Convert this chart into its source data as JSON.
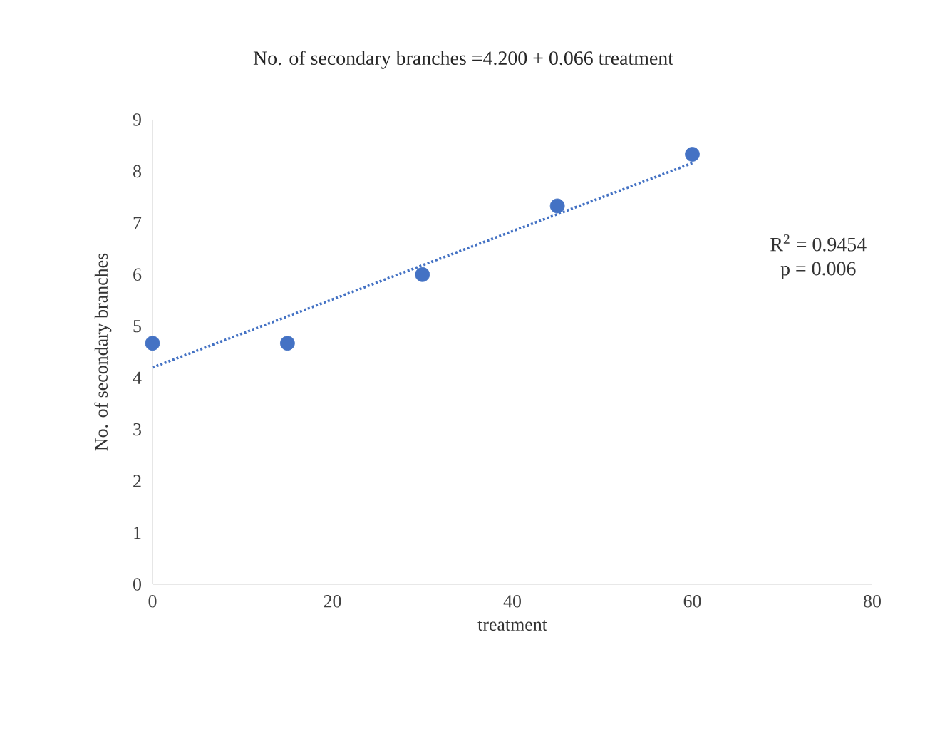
{
  "chart_data": {
    "type": "scatter",
    "title": "No. of secondary branches =4.200 + 0.066 treatment",
    "xlabel": "treatment",
    "ylabel": "No. of secondary branches",
    "xlim": [
      0,
      80
    ],
    "xticks": [
      0,
      20,
      40,
      60,
      80
    ],
    "ylim": [
      0,
      9
    ],
    "yticks": [
      0,
      1,
      2,
      3,
      4,
      5,
      6,
      7,
      8,
      9
    ],
    "annotations": [
      "R$^{2}$ = 0.9454",
      "p = 0.006"
    ],
    "series": [
      {
        "color": "#4472c4",
        "marker": "circle",
        "x": [
          0,
          15,
          30,
          45,
          60
        ],
        "values": [
          4.67,
          4.67,
          6.0,
          7.33,
          8.33
        ]
      },
      {
        "type": "line",
        "color": "#4472c4",
        "line_style": "dotted",
        "marker": "none",
        "x": [
          0,
          60
        ],
        "values": [
          4.2,
          8.16
        ]
      }
    ]
  }
}
